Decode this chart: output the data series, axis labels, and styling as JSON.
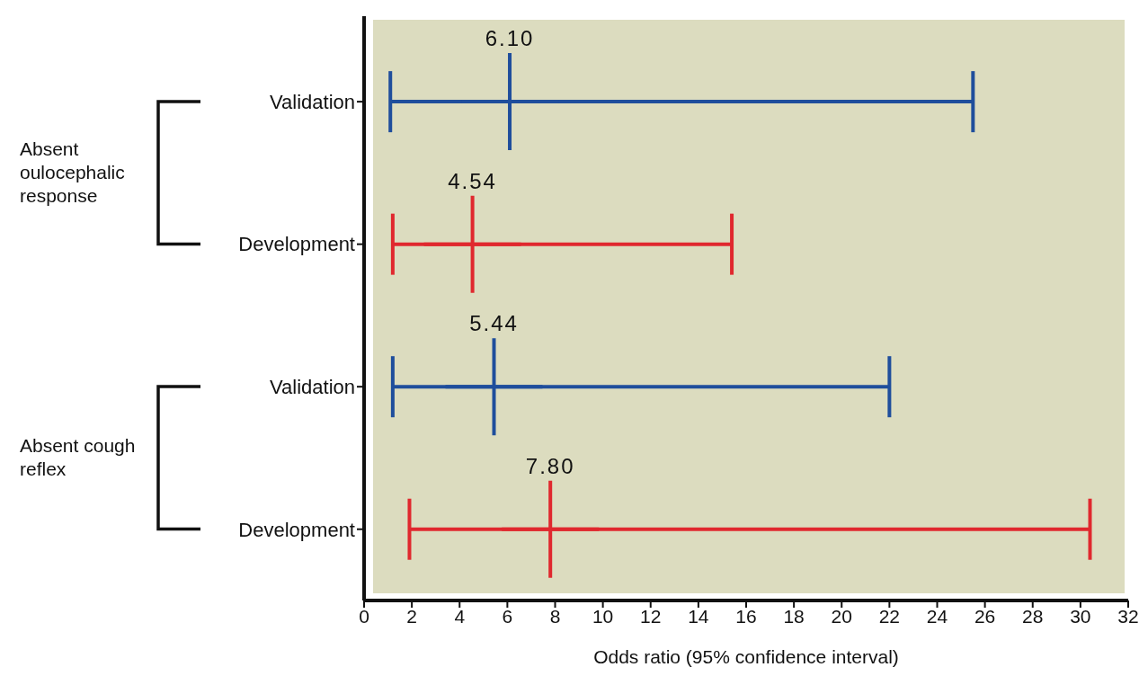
{
  "chart_data": {
    "type": "scatter",
    "orientation": "horizontal",
    "categories": [
      "Validation",
      "Development",
      "Validation",
      "Development"
    ],
    "values": [
      6.1,
      4.54,
      5.44,
      7.8
    ],
    "errors": [
      [
        1.1,
        25.5
      ],
      [
        1.2,
        15.4
      ],
      [
        1.2,
        22.0
      ],
      [
        1.9,
        30.4
      ]
    ],
    "colors": [
      "#1f4e9c",
      "#e0282e",
      "#1f4e9c",
      "#e0282e"
    ],
    "marker": "cross",
    "value_labels": [
      "6.10",
      "4.54",
      "5.44",
      "7.80"
    ],
    "xlim": [
      0,
      32
    ],
    "xticks": [
      0,
      2,
      4,
      6,
      8,
      10,
      12,
      14,
      16,
      18,
      20,
      22,
      24,
      26,
      28,
      30,
      32
    ],
    "xlabel": "Odds ratio (95% confidence interval)",
    "annotations": [
      "Absent oulocephalic response",
      "Absent cough reflex"
    ]
  }
}
